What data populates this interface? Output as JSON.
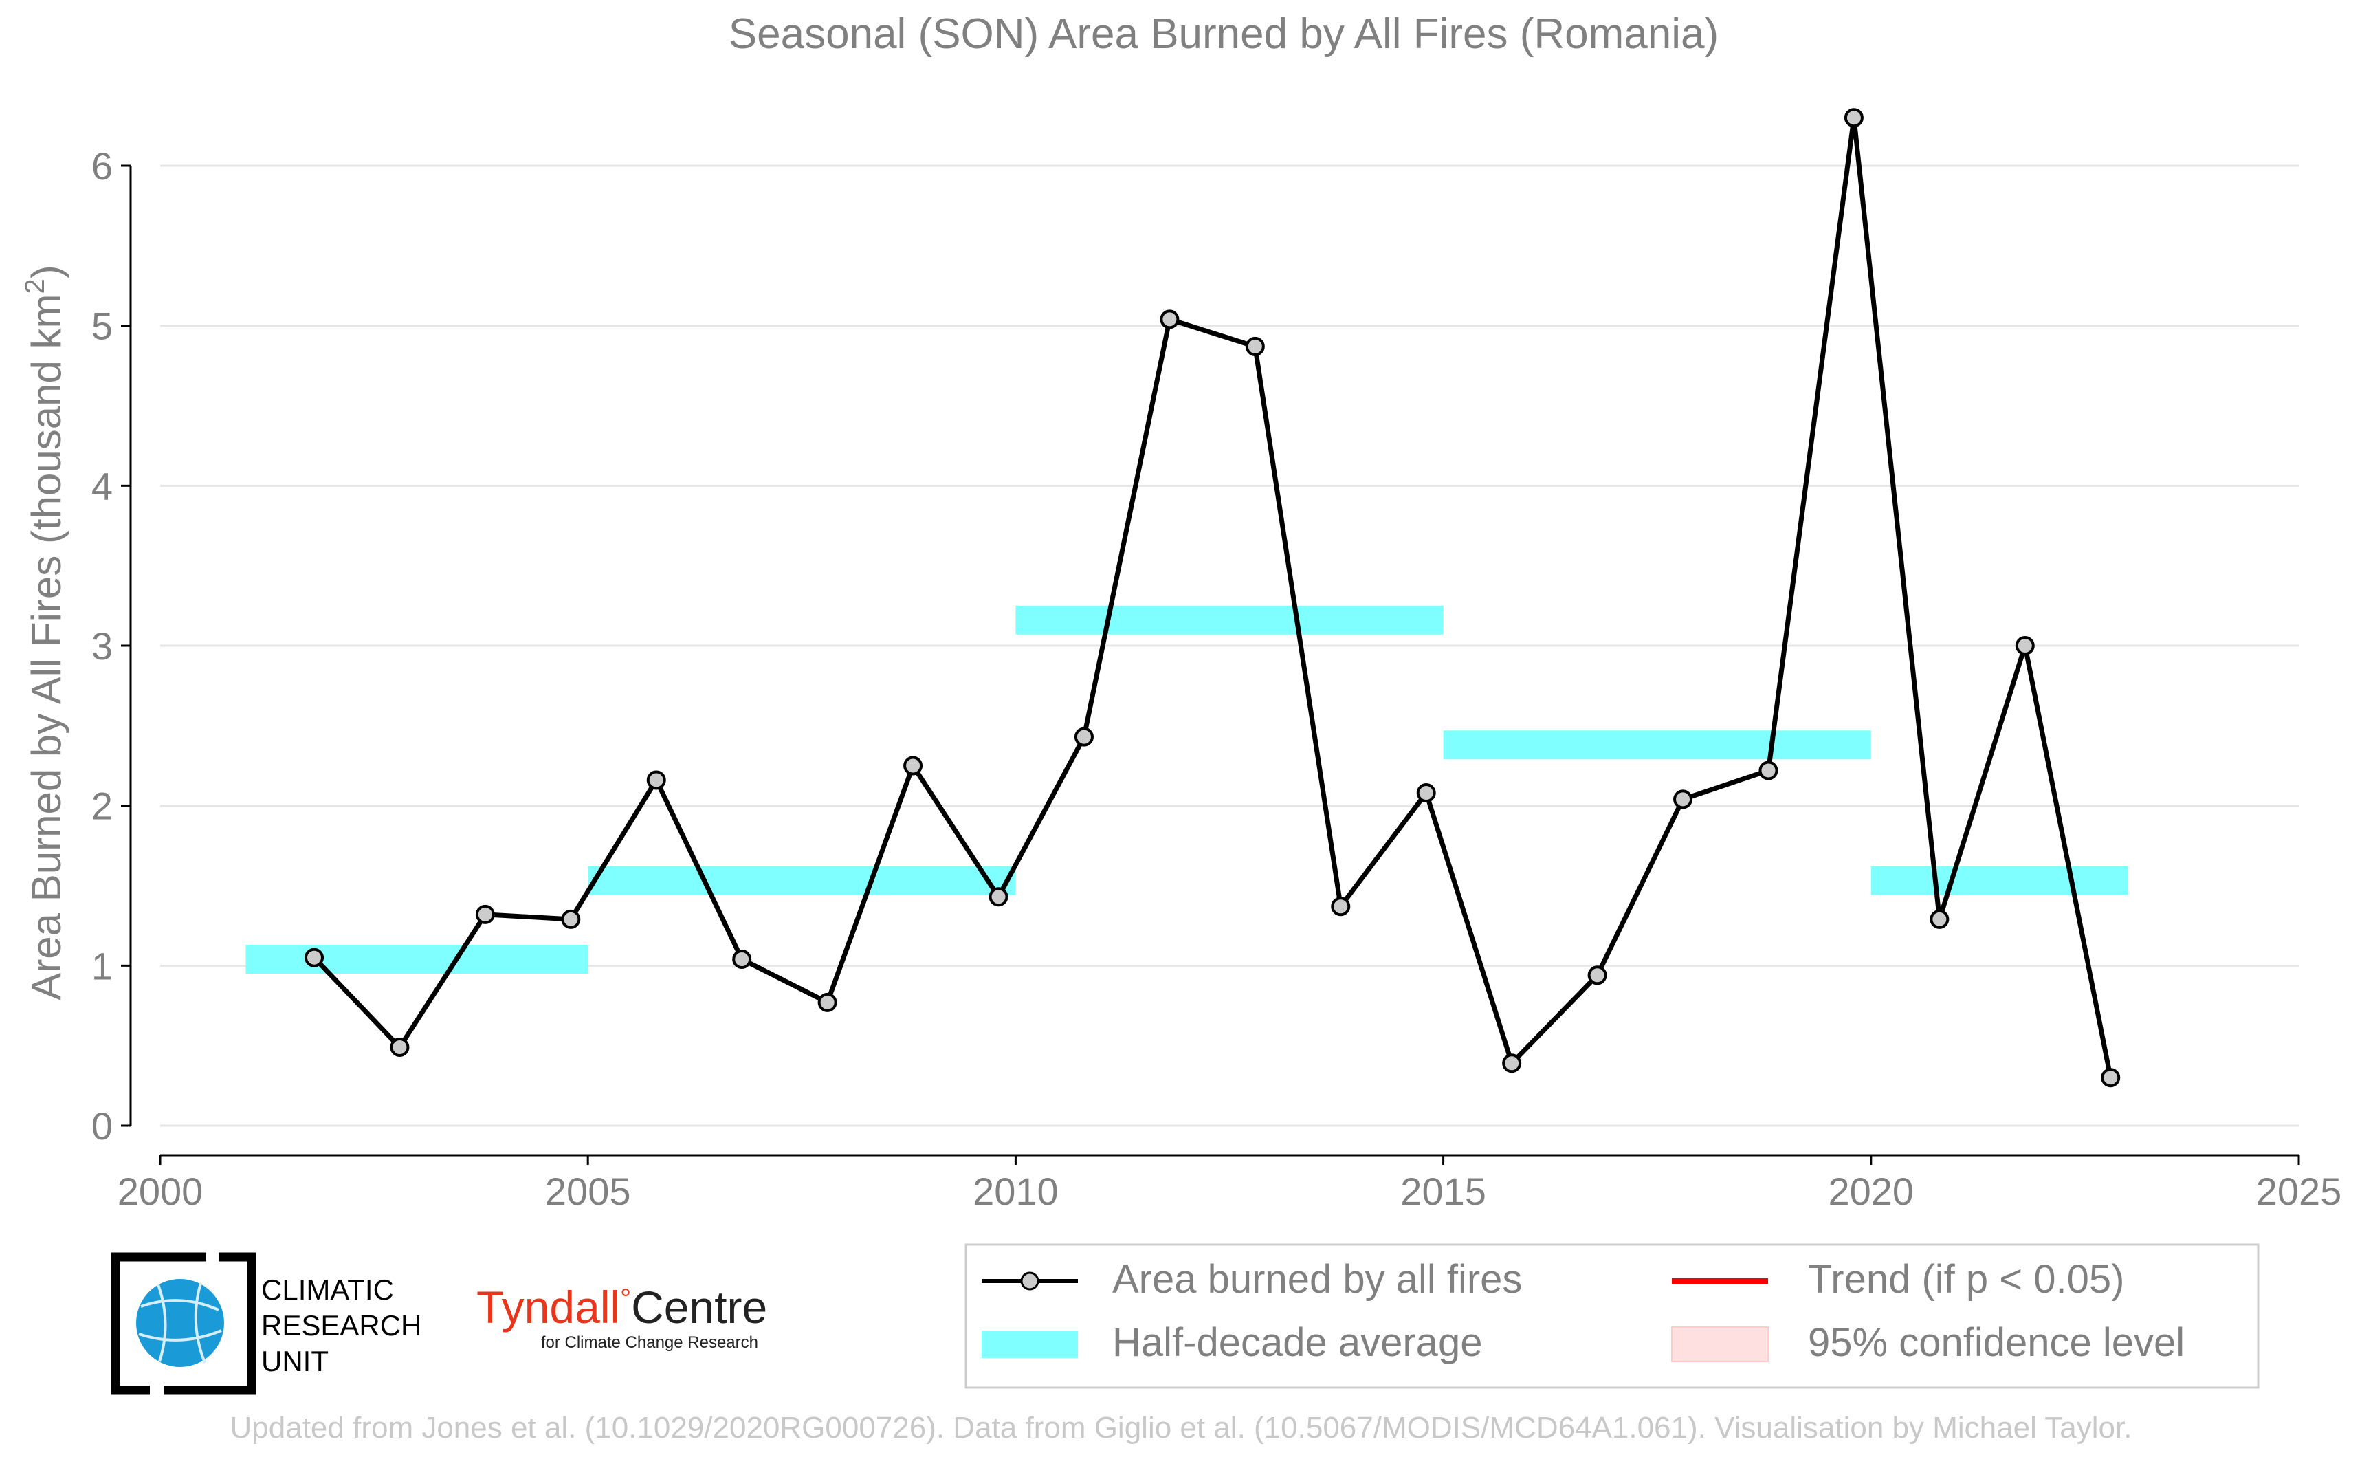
{
  "chart_data": {
    "type": "line",
    "title": "Seasonal (SON) Area Burned by All Fires (Romania)",
    "ylabel": "Area Burned by All Fires (thousand km",
    "ylabel_superscript": "2",
    "ylabel_suffix": ")",
    "xlim": [
      2000,
      2025
    ],
    "ylim": [
      -0.18,
      6.35
    ],
    "xticks": [
      2000,
      2005,
      2010,
      2015,
      2020,
      2025
    ],
    "yticks": [
      0,
      1,
      2,
      3,
      4,
      5,
      6
    ],
    "grid": "horizontal",
    "series": [
      {
        "name": "Area burned by all fires",
        "x": [
          2001.8,
          2002.8,
          2003.8,
          2004.8,
          2005.8,
          2006.8,
          2007.8,
          2008.8,
          2009.8,
          2010.8,
          2011.8,
          2012.8,
          2013.8,
          2014.8,
          2015.8,
          2016.8,
          2017.8,
          2018.8,
          2019.8,
          2020.8,
          2021.8,
          2022.8
        ],
        "y": [
          1.05,
          0.49,
          1.32,
          1.29,
          2.16,
          1.04,
          0.77,
          2.25,
          1.43,
          2.43,
          5.04,
          4.87,
          1.37,
          2.08,
          0.39,
          0.94,
          2.04,
          2.22,
          6.3,
          1.29,
          3.0,
          0.3
        ],
        "color": "#000000",
        "marker_fill": "#cccccc"
      }
    ],
    "half_decade_average": {
      "name": "Half-decade average",
      "color": "#7fffff",
      "segments": [
        {
          "x0": 2001,
          "x1": 2005,
          "y": 1.04
        },
        {
          "x0": 2005,
          "x1": 2010,
          "y": 1.53
        },
        {
          "x0": 2010,
          "x1": 2015,
          "y": 3.16
        },
        {
          "x0": 2015,
          "x1": 2020,
          "y": 2.38
        },
        {
          "x0": 2020,
          "x1": 2023,
          "y": 1.53
        }
      ]
    },
    "legend": {
      "placement": "bottom-right",
      "items": [
        {
          "label": "Area burned by all fires",
          "kind": "line-marker",
          "color": "#000000"
        },
        {
          "label": "Trend (if p < 0.05)",
          "kind": "line",
          "color": "#ff0000"
        },
        {
          "label": "Half-decade average",
          "kind": "band",
          "color": "#7fffff"
        },
        {
          "label": "95% confidence level",
          "kind": "patch",
          "color": "#ffe0e0"
        }
      ]
    }
  },
  "logos": {
    "cru": [
      "CLIMATIC",
      "RESEARCH",
      "UNIT"
    ],
    "tyndall_main": "Tyndall",
    "tyndall_degree": "°",
    "tyndall_centre": "Centre",
    "tyndall_sub": "for Climate Change Research"
  },
  "colors": {
    "text": "#808080",
    "grid": "#e6e6e6",
    "tyndall_red": "#e8361c",
    "cru_blue": "#1a9ad6"
  },
  "footer": "Updated from Jones et al. (10.1029/2020RG000726). Data from Giglio et al. (10.5067/MODIS/MCD64A1.061). Visualisation by Michael Taylor."
}
